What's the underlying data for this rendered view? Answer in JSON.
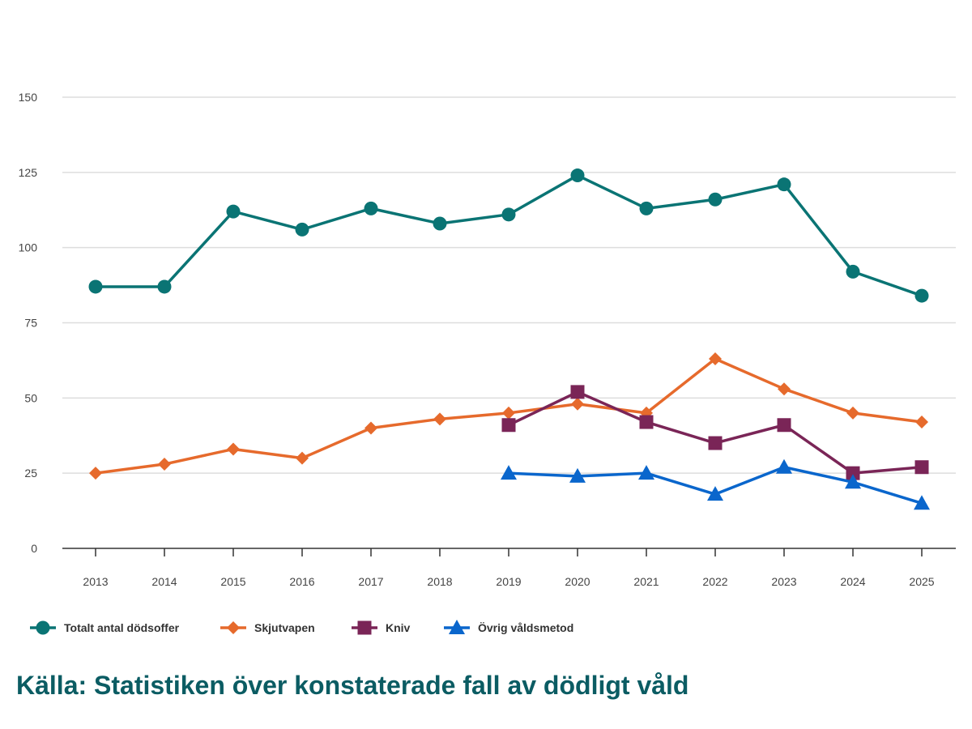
{
  "chart_data": {
    "type": "line",
    "categories": [
      "2013",
      "2014",
      "2015",
      "2016",
      "2017",
      "2018",
      "2019",
      "2020",
      "2021",
      "2022",
      "2023",
      "2024",
      "2025"
    ],
    "ylim": [
      0,
      150
    ],
    "yticks": [
      0,
      25,
      50,
      75,
      100,
      125,
      150
    ],
    "grid": true,
    "legend_position": "bottom-left",
    "series": [
      {
        "name": "Totalt antal dödsoffer",
        "color": "#0a7474",
        "marker": "circle",
        "values": [
          87,
          87,
          112,
          106,
          113,
          108,
          111,
          124,
          113,
          116,
          121,
          92,
          84
        ]
      },
      {
        "name": "Skjutvapen",
        "color": "#e66a2c",
        "marker": "diamond",
        "values": [
          25,
          28,
          33,
          30,
          40,
          43,
          45,
          48,
          45,
          63,
          53,
          45,
          42
        ]
      },
      {
        "name": "Kniv",
        "color": "#7a2557",
        "marker": "square",
        "values": [
          null,
          null,
          null,
          null,
          null,
          null,
          41,
          52,
          42,
          35,
          41,
          25,
          27
        ]
      },
      {
        "name": "Övrig våldsmetod",
        "color": "#0a66cc",
        "marker": "triangle",
        "values": [
          null,
          null,
          null,
          null,
          null,
          null,
          25,
          24,
          25,
          18,
          27,
          22,
          15
        ]
      }
    ]
  },
  "source": "Källa: Statistiken över konstaterade fall av dödligt våld"
}
